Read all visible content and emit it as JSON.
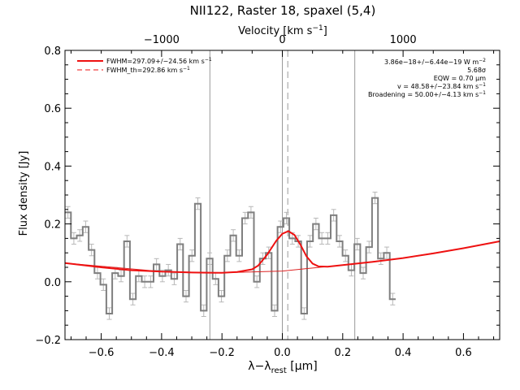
{
  "chart_data": {
    "type": "line",
    "title": "NII122, Raster 18, spaxel (5,4)",
    "xlabel_main": "λ−λ",
    "xlabel_sub": "rest",
    "xlabel_unit": " [μm]",
    "ylabel": "Flux density [Jy]",
    "top_axis_label_main": "Velocity [km s",
    "top_axis_label_sup": "−1",
    "top_axis_label_close": "]",
    "xlim": [
      -0.72,
      0.72
    ],
    "ylim": [
      -0.2,
      0.8
    ],
    "x_ticks": [
      -0.6,
      -0.4,
      -0.2,
      0.0,
      0.2,
      0.4,
      0.6
    ],
    "x_tick_labels": [
      "−0.6",
      "−0.4",
      "−0.2",
      "0.0",
      "0.2",
      "0.4",
      "0.6"
    ],
    "y_ticks": [
      -0.2,
      0.0,
      0.2,
      0.4,
      0.6,
      0.8
    ],
    "y_tick_labels": [
      "−0.2",
      "0.0",
      "0.2",
      "0.4",
      "0.6",
      "0.8"
    ],
    "top_ticks_x": [
      -0.4,
      0.0,
      0.4
    ],
    "top_tick_labels": [
      "−1000",
      "0",
      "1000"
    ],
    "vertical_lines": [
      -0.24,
      0.0,
      0.24
    ],
    "center_dashed_x": 0.018,
    "legend": [
      {
        "label": "FWHM=297.09+/−24.56 km s",
        "sup": "−1",
        "style": "solid"
      },
      {
        "label": "FWHM_th=292.86 km s",
        "sup": "−1",
        "style": "dashed"
      }
    ],
    "annotations": [
      {
        "text": "3.86e−18+/−6.44e−19 W m",
        "sup": "−2"
      },
      {
        "text": "5.68σ",
        "sup": ""
      },
      {
        "text": "EQW = 0.70 μm",
        "sup": ""
      },
      {
        "text": "v = 48.58+/−23.84 km s",
        "sup": "−1"
      },
      {
        "text": "Broadening = 50.00+/−4.13 km s",
        "sup": "−1"
      }
    ],
    "spectrum": {
      "x_start": -0.72,
      "bin_width": 0.01956,
      "values": [
        0.24,
        0.15,
        0.16,
        0.19,
        0.11,
        0.03,
        -0.01,
        -0.11,
        0.03,
        0.02,
        0.14,
        -0.06,
        0.02,
        0.0,
        0.0,
        0.06,
        0.02,
        0.04,
        0.01,
        0.13,
        -0.05,
        0.09,
        0.27,
        -0.1,
        0.08,
        0.01,
        -0.05,
        0.09,
        0.16,
        0.09,
        0.22,
        0.24,
        0.0,
        0.08,
        0.1,
        -0.1,
        0.19,
        0.22,
        0.15,
        0.14,
        -0.11,
        0.14,
        0.2,
        0.15,
        0.15,
        0.23,
        0.14,
        0.09,
        0.04,
        0.13,
        0.03,
        0.12,
        0.29,
        0.08,
        0.1,
        -0.06
      ],
      "errors": [
        0.02,
        0.02,
        0.02,
        0.02,
        0.02,
        0.02,
        0.02,
        0.02,
        0.02,
        0.02,
        0.02,
        0.02,
        0.02,
        0.02,
        0.02,
        0.02,
        0.02,
        0.02,
        0.02,
        0.02,
        0.02,
        0.02,
        0.02,
        0.02,
        0.02,
        0.02,
        0.02,
        0.02,
        0.02,
        0.02,
        0.02,
        0.02,
        0.02,
        0.02,
        0.02,
        0.02,
        0.02,
        0.02,
        0.02,
        0.02,
        0.02,
        0.02,
        0.02,
        0.02,
        0.02,
        0.02,
        0.02,
        0.02,
        0.02,
        0.02,
        0.02,
        0.02,
        0.02,
        0.02,
        0.02,
        0.02
      ]
    },
    "fit_line": {
      "x": [
        -0.72,
        -0.6,
        -0.5,
        -0.4,
        -0.3,
        -0.2,
        -0.15,
        -0.1,
        -0.08,
        -0.05,
        -0.02,
        0.0,
        0.02,
        0.04,
        0.06,
        0.08,
        0.1,
        0.12,
        0.15,
        0.2,
        0.3,
        0.4,
        0.5,
        0.6,
        0.72
      ],
      "y": [
        0.065,
        0.05,
        0.04,
        0.035,
        0.032,
        0.031,
        0.034,
        0.043,
        0.056,
        0.094,
        0.142,
        0.166,
        0.175,
        0.162,
        0.128,
        0.088,
        0.063,
        0.053,
        0.052,
        0.058,
        0.069,
        0.082,
        0.098,
        0.116,
        0.14
      ]
    },
    "continuum_line": {
      "x": [
        -0.72,
        -0.4,
        -0.2,
        0.0,
        0.2,
        0.4,
        0.6,
        0.72
      ],
      "y": [
        0.065,
        0.035,
        0.031,
        0.037,
        0.058,
        0.082,
        0.116,
        0.14
      ]
    },
    "colors": {
      "spectrum": "#7f7f7f",
      "errorbar": "#b8b8b8",
      "fit": "#ee1111",
      "continuum": "#dd2222",
      "vline": "#9a9a9a"
    }
  }
}
